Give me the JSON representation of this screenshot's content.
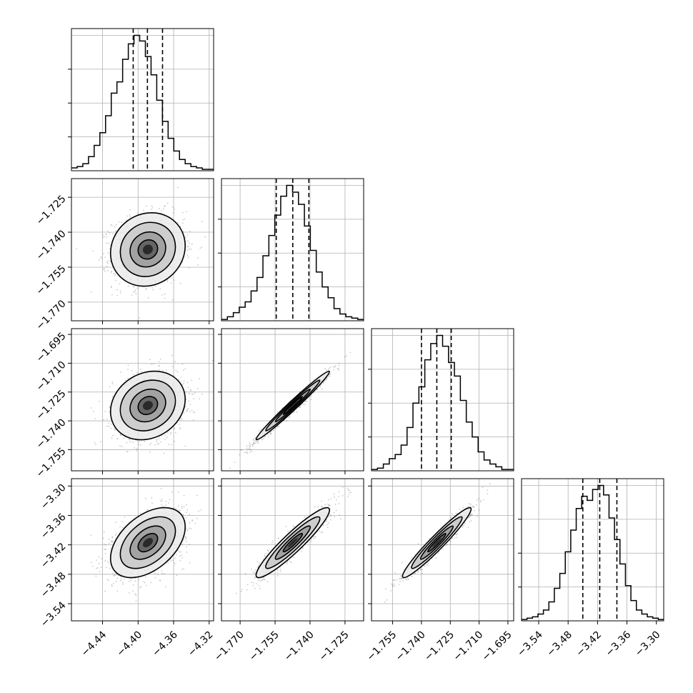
{
  "chart_data": {
    "type": "corner",
    "title": "",
    "grid": true,
    "n_params": 4,
    "ranges": [
      [
        -4.475,
        -4.315
      ],
      [
        -1.778,
        -1.717
      ],
      [
        -1.766,
        -1.692
      ],
      [
        -3.575,
        -3.285
      ]
    ],
    "ticks": [
      {
        "values": [
          -4.44,
          -4.4,
          -4.36,
          -4.32
        ],
        "labels": [
          "−4.44",
          "−4.40",
          "−4.36",
          "−4.32"
        ]
      },
      {
        "values": [
          -1.77,
          -1.755,
          -1.74,
          -1.725
        ],
        "labels": [
          "−1.770",
          "−1.755",
          "−1.740",
          "−1.725"
        ]
      },
      {
        "values": [
          -1.755,
          -1.74,
          -1.725,
          -1.71,
          -1.695
        ],
        "labels": [
          "−1.755",
          "−1.740",
          "−1.725",
          "−1.710",
          "−1.695"
        ]
      },
      {
        "values": [
          -3.54,
          -3.48,
          -3.42,
          -3.36,
          -3.3
        ],
        "labels": [
          "−3.54",
          "−3.48",
          "−3.42",
          "−3.36",
          "−3.30"
        ]
      }
    ],
    "diagonal_ticks": [
      [
        0.25,
        0.5,
        0.75
      ],
      [
        0.25,
        0.5,
        0.75
      ],
      [
        0.25,
        0.5,
        0.75
      ],
      [
        0.25,
        0.5,
        0.75
      ]
    ],
    "marginals": [
      {
        "param": 0,
        "quantiles": [
          -4.4055,
          -4.3895,
          -4.3725
        ],
        "counts": [
          2,
          3,
          5,
          10,
          18,
          27,
          39,
          55,
          63,
          79,
          90,
          96,
          92,
          81,
          68,
          50,
          35,
          23,
          14,
          8,
          5,
          3,
          2,
          1,
          1
        ]
      },
      {
        "param": 1,
        "quantiles": [
          -1.7545,
          -1.7474,
          -1.7405
        ],
        "counts": [
          1,
          3,
          6,
          10,
          14,
          22,
          32,
          48,
          63,
          78,
          92,
          100,
          95,
          86,
          70,
          52,
          36,
          25,
          17,
          9,
          5,
          3,
          2,
          1
        ]
      },
      {
        "param": 2,
        "quantiles": [
          -1.74,
          -1.732,
          -1.7245
        ],
        "counts": [
          1,
          2,
          5,
          9,
          12,
          19,
          32,
          50,
          62,
          82,
          94,
          100,
          92,
          80,
          70,
          52,
          36,
          25,
          14,
          8,
          5,
          3,
          1,
          1
        ]
      },
      {
        "param": 3,
        "quantiles": [
          -3.45,
          -3.4155,
          -3.3805
        ],
        "counts": [
          1,
          2,
          3,
          5,
          8,
          14,
          24,
          35,
          51,
          67,
          83,
          92,
          89,
          97,
          100,
          93,
          76,
          60,
          42,
          26,
          15,
          8,
          5,
          3,
          2,
          1
        ]
      }
    ],
    "pairs": [
      {
        "x": 0,
        "y": 1,
        "mean": [
          -4.389,
          -1.7474
        ],
        "sd": [
          0.02,
          0.0075
        ],
        "rho": 0.1
      },
      {
        "x": 0,
        "y": 2,
        "mean": [
          -4.389,
          -1.732
        ],
        "sd": [
          0.02,
          0.0085
        ],
        "rho": 0.18
      },
      {
        "x": 1,
        "y": 2,
        "mean": [
          -1.7474,
          -1.732
        ],
        "sd": [
          0.0075,
          0.0085
        ],
        "rho": 0.985
      },
      {
        "x": 0,
        "y": 3,
        "mean": [
          -4.389,
          -3.4155
        ],
        "sd": [
          0.02,
          0.034
        ],
        "rho": 0.45
      },
      {
        "x": 1,
        "y": 3,
        "mean": [
          -1.7474,
          -3.4155
        ],
        "sd": [
          0.0075,
          0.034
        ],
        "rho": 0.93
      },
      {
        "x": 2,
        "y": 3,
        "mean": [
          -1.732,
          -3.4155
        ],
        "sd": [
          0.0085,
          0.034
        ],
        "rho": 0.96
      }
    ]
  }
}
